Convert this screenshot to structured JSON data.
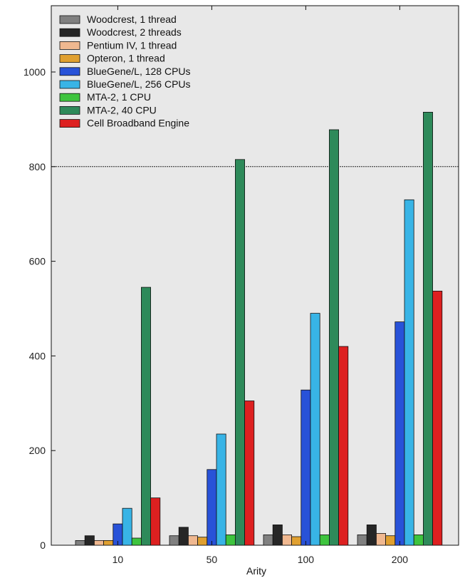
{
  "chart_data": {
    "type": "bar",
    "title": "",
    "xlabel": "Arity",
    "ylabel": "",
    "categories": [
      "10",
      "50",
      "100",
      "200"
    ],
    "yticks": [
      "0",
      "200",
      "400",
      "600",
      "800",
      "1000"
    ],
    "ylim": [
      0,
      1100
    ],
    "reference_line": 800,
    "grid": false,
    "legend_position": "top-left",
    "series": [
      {
        "name": "Woodcrest, 1 thread",
        "color": "#808080",
        "values": [
          10,
          20,
          22,
          22
        ]
      },
      {
        "name": "Woodcrest, 2 threads",
        "color": "#262626",
        "values": [
          20,
          38,
          43,
          43
        ]
      },
      {
        "name": "Pentium IV, 1 thread",
        "color": "#f0b890",
        "values": [
          10,
          20,
          22,
          25
        ]
      },
      {
        "name": "Opteron, 1 thread",
        "color": "#e0a030",
        "values": [
          10,
          17,
          18,
          20
        ]
      },
      {
        "name": "BlueGene/L, 128 CPUs",
        "color": "#2852d8",
        "values": [
          45,
          160,
          328,
          472
        ]
      },
      {
        "name": "BlueGene/L, 256 CPUs",
        "color": "#38b4e6",
        "values": [
          78,
          235,
          490,
          730
        ]
      },
      {
        "name": "MTA-2,  1 CPU",
        "color": "#3ec43e",
        "values": [
          15,
          22,
          22,
          22
        ]
      },
      {
        "name": "MTA-2, 40 CPU",
        "color": "#2e8a5a",
        "values": [
          545,
          815,
          878,
          915
        ]
      },
      {
        "name": "Cell Broadband Engine",
        "color": "#dd2020",
        "values": [
          100,
          305,
          420,
          537
        ]
      }
    ]
  }
}
